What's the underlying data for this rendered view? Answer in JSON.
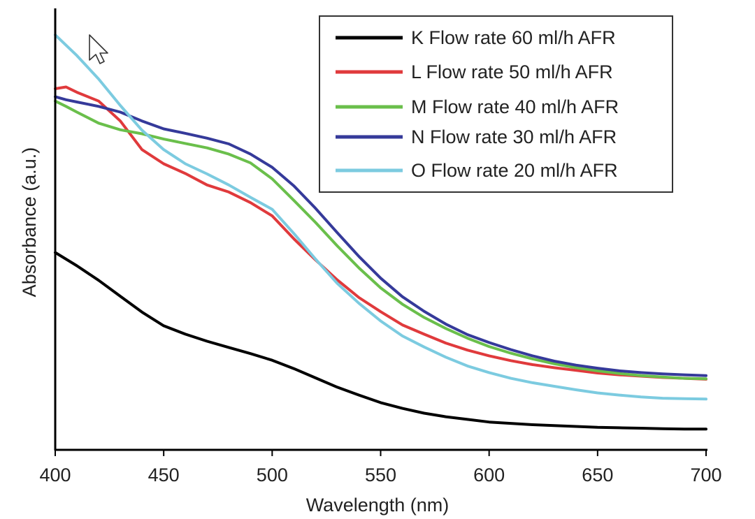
{
  "chart_data": {
    "type": "line",
    "title": "",
    "xlabel": "Wavelength (nm)",
    "ylabel": "Absorbance (a.u.)",
    "xlim": [
      400,
      700
    ],
    "ylim": [
      0,
      1
    ],
    "x_ticks": [
      400,
      450,
      500,
      550,
      600,
      650,
      700
    ],
    "x_tick_labels": [
      "400",
      "450",
      "500",
      "550",
      "600",
      "650",
      "700"
    ],
    "y_tick_labels": [],
    "grid": false,
    "legend_position": "top-right",
    "series": [
      {
        "name": "K Flow rate 60 ml/h AFR",
        "color": "#000000",
        "x": [
          400,
          410,
          420,
          430,
          440,
          450,
          460,
          470,
          480,
          490,
          500,
          510,
          520,
          530,
          540,
          550,
          560,
          570,
          580,
          590,
          600,
          610,
          620,
          630,
          640,
          650,
          660,
          670,
          680,
          690,
          700
        ],
        "y": [
          0.447,
          0.417,
          0.384,
          0.348,
          0.312,
          0.281,
          0.262,
          0.246,
          0.232,
          0.218,
          0.203,
          0.184,
          0.163,
          0.142,
          0.124,
          0.107,
          0.094,
          0.083,
          0.075,
          0.069,
          0.063,
          0.06,
          0.057,
          0.055,
          0.053,
          0.051,
          0.05,
          0.049,
          0.048,
          0.047,
          0.047
        ]
      },
      {
        "name": "L Flow rate 50 ml/h AFR",
        "color": "#e03a3c",
        "x": [
          400,
          405,
          410,
          420,
          430,
          440,
          450,
          460,
          470,
          480,
          490,
          500,
          510,
          520,
          530,
          540,
          550,
          560,
          570,
          580,
          590,
          600,
          610,
          620,
          630,
          640,
          650,
          660,
          670,
          680,
          690,
          700
        ],
        "y": [
          0.818,
          0.822,
          0.81,
          0.79,
          0.745,
          0.68,
          0.648,
          0.626,
          0.6,
          0.584,
          0.56,
          0.53,
          0.478,
          0.43,
          0.385,
          0.345,
          0.313,
          0.283,
          0.262,
          0.242,
          0.226,
          0.213,
          0.202,
          0.193,
          0.186,
          0.18,
          0.174,
          0.17,
          0.167,
          0.164,
          0.162,
          0.16
        ]
      },
      {
        "name": "M Flow rate 40 ml/h AFR",
        "color": "#6abf4b",
        "x": [
          400,
          405,
          410,
          420,
          430,
          440,
          450,
          460,
          470,
          480,
          490,
          500,
          510,
          520,
          530,
          540,
          550,
          560,
          570,
          580,
          590,
          600,
          610,
          620,
          630,
          640,
          650,
          660,
          670,
          680,
          690,
          700
        ],
        "y": [
          0.79,
          0.778,
          0.765,
          0.74,
          0.725,
          0.716,
          0.704,
          0.694,
          0.684,
          0.67,
          0.65,
          0.614,
          0.565,
          0.515,
          0.462,
          0.412,
          0.367,
          0.33,
          0.3,
          0.275,
          0.253,
          0.234,
          0.219,
          0.206,
          0.195,
          0.186,
          0.179,
          0.173,
          0.168,
          0.165,
          0.162,
          0.161
        ]
      },
      {
        "name": "N Flow rate 30 ml/h AFR",
        "color": "#353a9a",
        "x": [
          400,
          405,
          410,
          420,
          430,
          440,
          450,
          460,
          470,
          480,
          490,
          500,
          510,
          520,
          530,
          540,
          550,
          560,
          570,
          580,
          590,
          600,
          610,
          620,
          630,
          640,
          650,
          660,
          670,
          680,
          690,
          700
        ],
        "y": [
          0.8,
          0.793,
          0.788,
          0.778,
          0.765,
          0.745,
          0.727,
          0.717,
          0.706,
          0.693,
          0.67,
          0.64,
          0.598,
          0.547,
          0.492,
          0.438,
          0.389,
          0.347,
          0.314,
          0.285,
          0.261,
          0.243,
          0.227,
          0.213,
          0.201,
          0.192,
          0.185,
          0.179,
          0.175,
          0.172,
          0.17,
          0.168
        ]
      },
      {
        "name": "O Flow rate 20 ml/h AFR",
        "color": "#7ccbe0",
        "x": [
          400,
          410,
          420,
          430,
          440,
          450,
          460,
          470,
          480,
          490,
          500,
          510,
          520,
          530,
          540,
          550,
          560,
          570,
          580,
          590,
          600,
          610,
          620,
          630,
          640,
          650,
          660,
          670,
          680,
          690,
          700
        ],
        "y": [
          0.94,
          0.893,
          0.84,
          0.78,
          0.724,
          0.68,
          0.648,
          0.625,
          0.6,
          0.572,
          0.545,
          0.49,
          0.432,
          0.377,
          0.332,
          0.292,
          0.258,
          0.233,
          0.21,
          0.19,
          0.175,
          0.162,
          0.152,
          0.144,
          0.136,
          0.129,
          0.124,
          0.12,
          0.117,
          0.116,
          0.115
        ]
      }
    ]
  },
  "pointer_icon": "mouse-pointer-icon"
}
